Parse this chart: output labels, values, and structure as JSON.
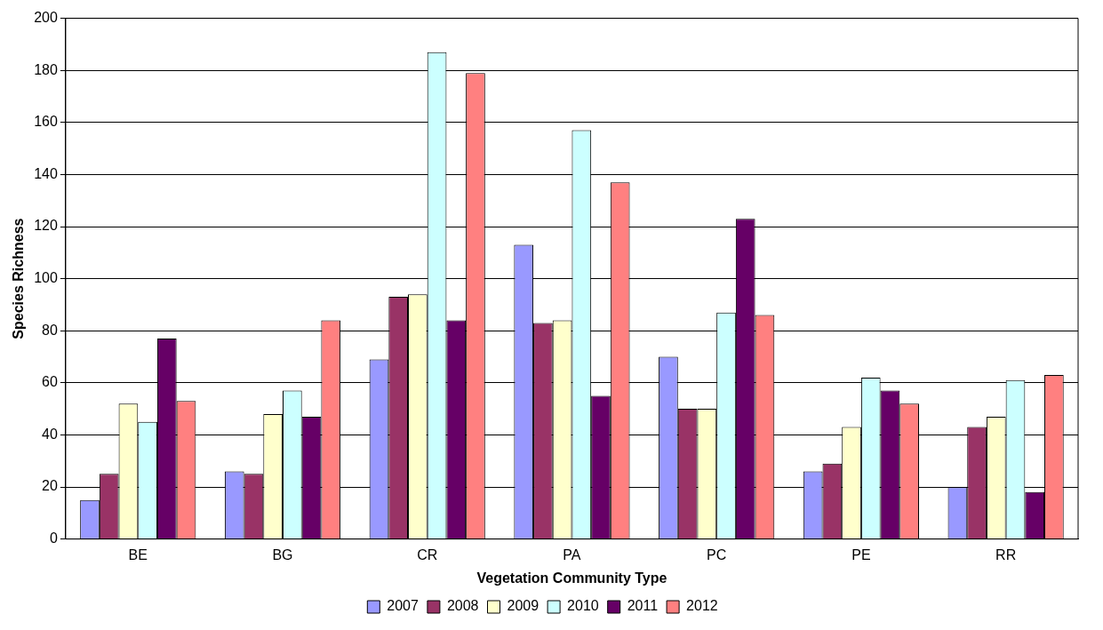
{
  "chart_data": {
    "type": "bar",
    "xlabel": "Vegetation Community Type",
    "ylabel": "Species Richness",
    "categories": [
      "BE",
      "BG",
      "CR",
      "PA",
      "PC",
      "PE",
      "RR"
    ],
    "series": [
      {
        "name": "2007",
        "color": "#9999ff",
        "values": [
          15,
          26,
          69,
          113,
          70,
          26,
          20
        ]
      },
      {
        "name": "2008",
        "color": "#993366",
        "values": [
          25,
          25,
          93,
          83,
          50,
          29,
          43
        ]
      },
      {
        "name": "2009",
        "color": "#ffffcc",
        "values": [
          52,
          48,
          94,
          84,
          50,
          43,
          47
        ]
      },
      {
        "name": "2010",
        "color": "#ccffff",
        "values": [
          45,
          57,
          187,
          157,
          87,
          62,
          61
        ]
      },
      {
        "name": "2011",
        "color": "#660066",
        "values": [
          77,
          47,
          84,
          55,
          123,
          57,
          18
        ]
      },
      {
        "name": "2012",
        "color": "#ff8080",
        "values": [
          53,
          84,
          179,
          137,
          86,
          52,
          63
        ]
      }
    ],
    "ylim": [
      0,
      200
    ],
    "yticks": [
      0,
      20,
      40,
      60,
      80,
      100,
      120,
      140,
      160,
      180,
      200
    ],
    "grid": "y",
    "legend": "bottom"
  }
}
